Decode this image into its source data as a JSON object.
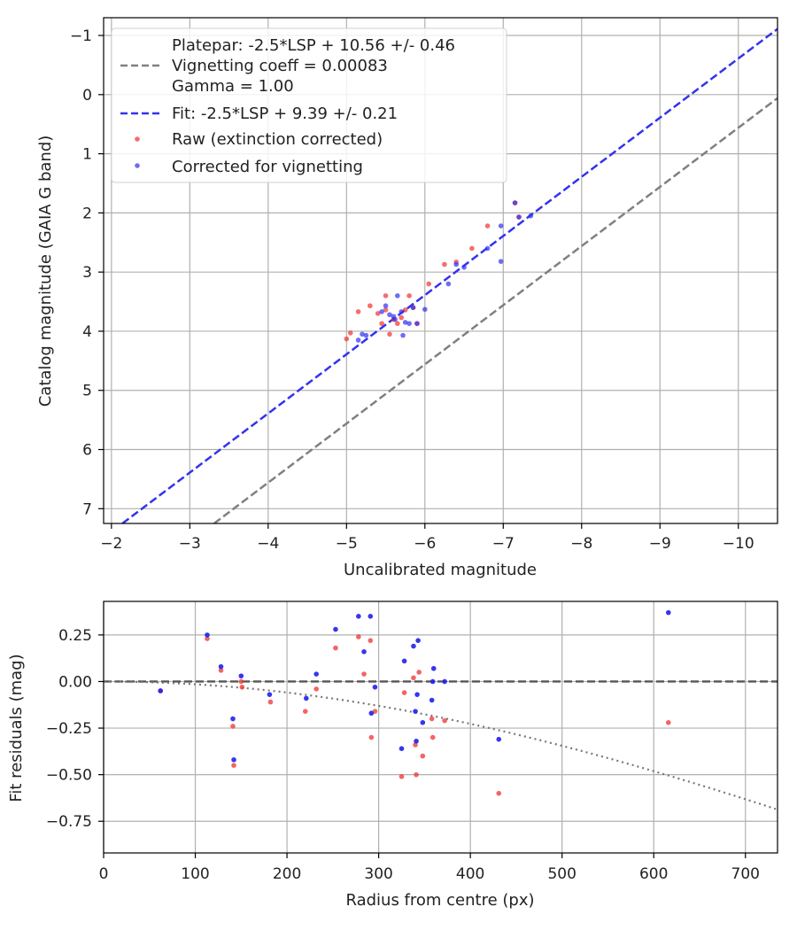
{
  "chart_data": [
    {
      "type": "scatter",
      "id": "calibration",
      "xlabel": "Uncalibrated magnitude",
      "ylabel": "Catalog magnitude (GAIA G band)",
      "xlim": [
        -1.9,
        -10.5
      ],
      "ylim": [
        7.25,
        -1.3
      ],
      "x_ticks": [
        -2,
        -3,
        -4,
        -5,
        -6,
        -7,
        -8,
        -9,
        -10
      ],
      "x_tick_labels": [
        "−2",
        "−3",
        "−4",
        "−5",
        "−6",
        "−7",
        "−8",
        "−9",
        "−10"
      ],
      "y_ticks": [
        -1,
        0,
        1,
        2,
        3,
        4,
        5,
        6,
        7
      ],
      "y_tick_labels": [
        "−1",
        "0",
        "1",
        "2",
        "3",
        "4",
        "5",
        "6",
        "7"
      ],
      "grid": true,
      "legend_position": "top-left",
      "legend": [
        {
          "label": "Platepar: -2.5*LSP + 10.56 +/- 0.46",
          "style": "none"
        },
        {
          "label": "Vignetting coeff = 0.00083",
          "style": "dashed-gray"
        },
        {
          "label": "Gamma = 1.00",
          "style": "none"
        },
        {
          "label": "Fit: -2.5*LSP + 9.39 +/- 0.21",
          "style": "dashed-blue"
        },
        {
          "label": "Raw (extinction corrected)",
          "style": "dot-red"
        },
        {
          "label": "Corrected for vignetting",
          "style": "dot-blue"
        }
      ],
      "lines": [
        {
          "name": "Platepar",
          "slope": 1,
          "offset": 10.56,
          "color": "#808080"
        },
        {
          "name": "Fit",
          "slope": 1,
          "offset": 9.39,
          "color": "#3333ee"
        }
      ],
      "series": [
        {
          "name": "Raw (extinction corrected)",
          "color": "#f03030",
          "x": [
            -5.0,
            -5.05,
            -5.15,
            -5.3,
            -5.4,
            -5.45,
            -5.5,
            -5.5,
            -5.55,
            -5.6,
            -5.65,
            -5.7,
            -5.75,
            -5.8,
            -5.85,
            -5.9,
            -6.05,
            -6.25,
            -6.4,
            -6.6,
            -6.8,
            -7.15,
            -7.2
          ],
          "y": [
            4.13,
            4.03,
            3.67,
            3.57,
            3.7,
            3.87,
            3.4,
            3.64,
            4.05,
            3.8,
            3.87,
            3.77,
            3.64,
            3.4,
            3.6,
            3.87,
            3.2,
            2.87,
            2.83,
            2.6,
            2.22,
            1.83,
            2.07
          ]
        },
        {
          "name": "Corrected for vignetting",
          "color": "#3030f0",
          "x": [
            -5.15,
            -5.2,
            -5.25,
            -5.45,
            -5.5,
            -5.55,
            -5.6,
            -5.62,
            -5.65,
            -5.7,
            -5.72,
            -5.75,
            -5.8,
            -5.85,
            -5.9,
            -6.0,
            -6.3,
            -6.4,
            -6.5,
            -6.8,
            -6.97,
            -6.97,
            -7.15,
            -7.2,
            -7.35
          ],
          "y": [
            4.15,
            4.05,
            4.07,
            3.67,
            3.57,
            3.72,
            3.75,
            3.8,
            3.4,
            3.67,
            4.07,
            3.85,
            3.87,
            3.6,
            3.87,
            3.63,
            3.2,
            2.87,
            2.92,
            2.6,
            2.22,
            2.82,
            1.83,
            2.07,
            2.05
          ]
        }
      ]
    },
    {
      "type": "scatter",
      "id": "residuals",
      "xlabel": "Radius from centre (px)",
      "ylabel": "Fit residuals (mag)",
      "xlim": [
        0,
        735
      ],
      "ylim": [
        -0.92,
        0.43
      ],
      "x_ticks": [
        0,
        100,
        200,
        300,
        400,
        500,
        600,
        700
      ],
      "x_tick_labels": [
        "0",
        "100",
        "200",
        "300",
        "400",
        "500",
        "600",
        "700"
      ],
      "y_ticks": [
        0.25,
        0.0,
        -0.25,
        -0.5,
        -0.75
      ],
      "y_tick_labels": [
        "0.25",
        "0.00",
        "−0.25",
        "−0.50",
        "−0.75"
      ],
      "grid": true,
      "zero_line": {
        "y": 0,
        "color": "#555555"
      },
      "vignetting_curve": {
        "coeff": 0.00083,
        "color": "#777777"
      },
      "series": [
        {
          "name": "Raw (extinction corrected)",
          "color": "#f03030",
          "x": [
            62,
            113,
            128,
            141,
            142,
            150,
            151,
            182,
            220,
            232,
            253,
            278,
            284,
            291,
            292,
            296,
            325,
            328,
            338,
            340,
            341,
            344,
            348,
            358,
            359,
            372,
            431,
            616
          ],
          "y": [
            -0.05,
            0.23,
            0.06,
            -0.24,
            -0.45,
            0.0,
            -0.03,
            -0.11,
            -0.16,
            -0.04,
            0.18,
            0.24,
            0.04,
            0.22,
            -0.3,
            -0.16,
            -0.51,
            -0.06,
            0.02,
            -0.34,
            -0.5,
            0.05,
            -0.4,
            -0.2,
            -0.3,
            -0.21,
            -0.6,
            -0.22
          ]
        },
        {
          "name": "Corrected for vignetting",
          "color": "#2020ee",
          "x": [
            62,
            113,
            128,
            141,
            142,
            150,
            181,
            221,
            232,
            253,
            278,
            284,
            291,
            292,
            296,
            325,
            328,
            338,
            340,
            341,
            342,
            343,
            348,
            358,
            359,
            360,
            372,
            431,
            616
          ],
          "y": [
            -0.05,
            0.25,
            0.08,
            -0.2,
            -0.42,
            0.03,
            -0.07,
            -0.09,
            0.04,
            0.28,
            0.35,
            0.16,
            0.35,
            -0.17,
            -0.03,
            -0.36,
            0.11,
            0.19,
            -0.16,
            -0.32,
            -0.07,
            0.22,
            -0.22,
            -0.1,
            0.0,
            0.07,
            0.0,
            -0.31,
            0.37
          ]
        }
      ]
    }
  ]
}
